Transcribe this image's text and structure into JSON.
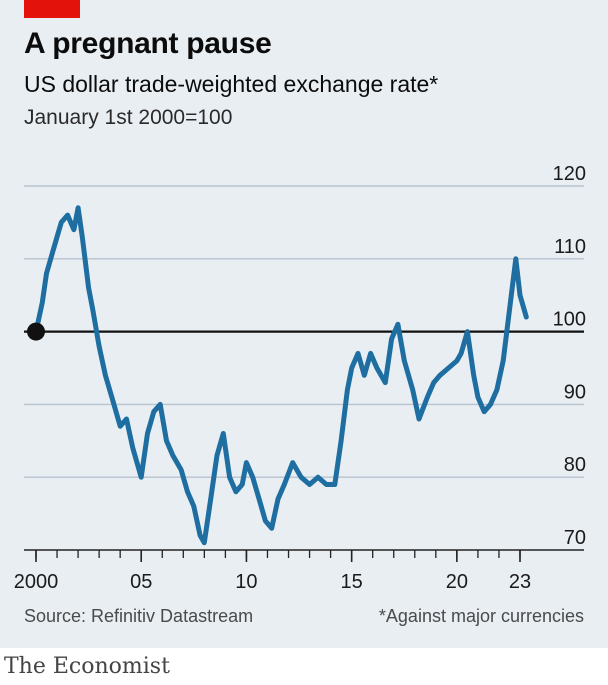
{
  "header": {
    "title": "A pregnant pause",
    "subtitle": "US dollar trade-weighted exchange rate*",
    "subtitle2": "January 1st 2000=100"
  },
  "footer": {
    "source": "Source: Refinitiv Datastream",
    "note": "*Against major currencies",
    "brand": "The Economist"
  },
  "colors": {
    "line": "#1f6ea1",
    "accent": "#e3120b",
    "background": "#e9eef3",
    "grid": "#b7c3cf"
  },
  "chart_data": {
    "type": "line",
    "ylim": [
      70,
      120
    ],
    "xlim": [
      1999.6,
      2023.9
    ],
    "yticks": [
      70,
      80,
      90,
      100,
      110,
      120
    ],
    "ytick_labels": [
      "70",
      "80",
      "90",
      "100",
      "110",
      "120"
    ],
    "xticks": [
      2000,
      2005,
      2010,
      2015,
      2020,
      2023
    ],
    "xtick_labels": [
      "2000",
      "05",
      "10",
      "15",
      "20",
      "23"
    ],
    "baseline": 100,
    "start_marker": {
      "x": 2000.0,
      "y": 100
    },
    "grid": true,
    "series": [
      {
        "x": [
          2000.0,
          2000.3,
          2000.5,
          2000.8,
          2001.0,
          2001.2,
          2001.5,
          2001.8,
          2002.0,
          2002.2,
          2002.5,
          2002.7,
          2003.0,
          2003.3,
          2003.6,
          2004.0,
          2004.3,
          2004.6,
          2005.0,
          2005.3,
          2005.6,
          2005.9,
          2006.2,
          2006.5,
          2006.9,
          2007.2,
          2007.5,
          2007.8,
          2008.0,
          2008.3,
          2008.6,
          2008.9,
          2009.2,
          2009.5,
          2009.8,
          2010.0,
          2010.3,
          2010.6,
          2010.9,
          2011.2,
          2011.5,
          2011.8,
          2012.2,
          2012.6,
          2013.0,
          2013.4,
          2013.8,
          2014.2,
          2014.5,
          2014.8,
          2015.0,
          2015.3,
          2015.6,
          2015.9,
          2016.2,
          2016.6,
          2016.9,
          2017.2,
          2017.5,
          2017.9,
          2018.2,
          2018.6,
          2018.9,
          2019.2,
          2019.6,
          2020.0,
          2020.2,
          2020.5,
          2020.8,
          2021.0,
          2021.3,
          2021.6,
          2021.9,
          2022.2,
          2022.5,
          2022.8,
          2023.0,
          2023.3
        ],
        "y": [
          100,
          104,
          108,
          111,
          113,
          115,
          116,
          114,
          117,
          113,
          106,
          103,
          98,
          94,
          91,
          87,
          88,
          84,
          80,
          86,
          89,
          90,
          85,
          83,
          81,
          78,
          76,
          72,
          71,
          77,
          83,
          86,
          80,
          78,
          79,
          82,
          80,
          77,
          74,
          73,
          77,
          79,
          82,
          80,
          79,
          80,
          79,
          79,
          85,
          92,
          95,
          97,
          94,
          97,
          95,
          93,
          99,
          101,
          96,
          92,
          88,
          91,
          93,
          94,
          95,
          96,
          97,
          100,
          94,
          91,
          89,
          90,
          92,
          96,
          103,
          110,
          105,
          102
        ]
      }
    ]
  }
}
